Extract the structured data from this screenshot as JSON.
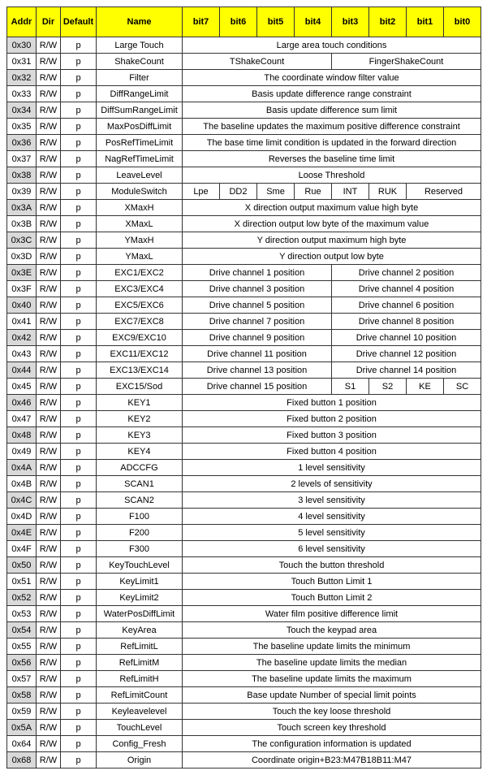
{
  "headers": [
    "Addr",
    "Dir",
    "Default",
    "Name",
    "bit7",
    "bit6",
    "bit5",
    "bit4",
    "bit3",
    "bit2",
    "bit1",
    "bit0"
  ],
  "rows": [
    {
      "addr": "0x30",
      "dir": "R/W",
      "def": "p",
      "name": "Large Touch",
      "bits": [
        {
          "span": 8,
          "text": "Large area touch conditions"
        }
      ]
    },
    {
      "addr": "0x31",
      "dir": "R/W",
      "def": "p",
      "name": "ShakeCount",
      "bits": [
        {
          "span": 4,
          "text": "TShakeCount"
        },
        {
          "span": 4,
          "text": "FingerShakeCount"
        }
      ]
    },
    {
      "addr": "0x32",
      "dir": "R/W",
      "def": "p",
      "name": "Filter",
      "bits": [
        {
          "span": 8,
          "text": "The coordinate window filter value"
        }
      ]
    },
    {
      "addr": "0x33",
      "dir": "R/W",
      "def": "p",
      "name": "DiffRangeLimit",
      "bits": [
        {
          "span": 8,
          "text": "Basis update difference range constraint"
        }
      ]
    },
    {
      "addr": "0x34",
      "dir": "R/W",
      "def": "p",
      "name": "DiffSumRangeLimit",
      "bits": [
        {
          "span": 8,
          "text": "Basis update difference sum limit"
        }
      ]
    },
    {
      "addr": "0x35",
      "dir": "R/W",
      "def": "p",
      "name": "MaxPosDiffLimit",
      "bits": [
        {
          "span": 8,
          "text": "The baseline updates the maximum positive difference constraint"
        }
      ]
    },
    {
      "addr": "0x36",
      "dir": "R/W",
      "def": "p",
      "name": "PosRefTimeLimit",
      "bits": [
        {
          "span": 8,
          "text": "The base time limit condition is updated in the forward direction"
        }
      ]
    },
    {
      "addr": "0x37",
      "dir": "R/W",
      "def": "p",
      "name": "NagRefTimeLimit",
      "bits": [
        {
          "span": 8,
          "text": "Reverses the baseline time limit"
        }
      ]
    },
    {
      "addr": "0x38",
      "dir": "R/W",
      "def": "p",
      "name": "LeaveLevel",
      "bits": [
        {
          "span": 8,
          "text": "Loose Threshold"
        }
      ]
    },
    {
      "addr": "0x39",
      "dir": "R/W",
      "def": "p",
      "name": "ModuleSwitch",
      "bits": [
        {
          "span": 1,
          "text": "Lpe"
        },
        {
          "span": 1,
          "text": "DD2"
        },
        {
          "span": 1,
          "text": "Sme"
        },
        {
          "span": 1,
          "text": "Rue"
        },
        {
          "span": 1,
          "text": "INT"
        },
        {
          "span": 1,
          "text": "RUK"
        },
        {
          "span": 2,
          "text": "Reserved"
        }
      ]
    },
    {
      "addr": "0x3A",
      "dir": "R/W",
      "def": "p",
      "name": "XMaxH",
      "bits": [
        {
          "span": 8,
          "text": "X direction output maximum value high byte"
        }
      ]
    },
    {
      "addr": "0x3B",
      "dir": "R/W",
      "def": "p",
      "name": "XMaxL",
      "bits": [
        {
          "span": 8,
          "text": "X direction output low byte of the maximum value"
        }
      ]
    },
    {
      "addr": "0x3C",
      "dir": "R/W",
      "def": "p",
      "name": "YMaxH",
      "bits": [
        {
          "span": 8,
          "text": "Y direction output maximum high byte"
        }
      ]
    },
    {
      "addr": "0x3D",
      "dir": "R/W",
      "def": "p",
      "name": "YMaxL",
      "bits": [
        {
          "span": 8,
          "text": "Y direction output low byte"
        }
      ]
    },
    {
      "addr": "0x3E",
      "dir": "R/W",
      "def": "p",
      "name": "EXC1/EXC2",
      "bits": [
        {
          "span": 4,
          "text": "Drive channel 1 position"
        },
        {
          "span": 4,
          "text": "Drive channel 2 position"
        }
      ]
    },
    {
      "addr": "0x3F",
      "dir": "R/W",
      "def": "p",
      "name": "EXC3/EXC4",
      "bits": [
        {
          "span": 4,
          "text": "Drive channel 3 position"
        },
        {
          "span": 4,
          "text": "Drive channel 4 position"
        }
      ]
    },
    {
      "addr": "0x40",
      "dir": "R/W",
      "def": "p",
      "name": "EXC5/EXC6",
      "bits": [
        {
          "span": 4,
          "text": "Drive channel 5 position"
        },
        {
          "span": 4,
          "text": "Drive channel 6 position"
        }
      ]
    },
    {
      "addr": "0x41",
      "dir": "R/W",
      "def": "p",
      "name": "EXC7/EXC8",
      "bits": [
        {
          "span": 4,
          "text": "Drive channel 7 position"
        },
        {
          "span": 4,
          "text": "Drive channel 8 position"
        }
      ]
    },
    {
      "addr": "0x42",
      "dir": "R/W",
      "def": "p",
      "name": "EXC9/EXC10",
      "bits": [
        {
          "span": 4,
          "text": "Drive channel 9 position"
        },
        {
          "span": 4,
          "text": "Drive channel 10 position"
        }
      ]
    },
    {
      "addr": "0x43",
      "dir": "R/W",
      "def": "p",
      "name": "EXC11/EXC12",
      "bits": [
        {
          "span": 4,
          "text": "Drive channel 11 position"
        },
        {
          "span": 4,
          "text": "Drive channel 12 position"
        }
      ]
    },
    {
      "addr": "0x44",
      "dir": "R/W",
      "def": "p",
      "name": "EXC13/EXC14",
      "bits": [
        {
          "span": 4,
          "text": "Drive channel 13 position"
        },
        {
          "span": 4,
          "text": "Drive channel 14 position"
        }
      ]
    },
    {
      "addr": "0x45",
      "dir": "R/W",
      "def": "p",
      "name": "EXC15/Sod",
      "bits": [
        {
          "span": 4,
          "text": "Drive channel 15 position"
        },
        {
          "span": 1,
          "text": "S1"
        },
        {
          "span": 1,
          "text": "S2"
        },
        {
          "span": 1,
          "text": "KE"
        },
        {
          "span": 1,
          "text": "SC"
        }
      ]
    },
    {
      "addr": "0x46",
      "dir": "R/W",
      "def": "p",
      "name": "KEY1",
      "bits": [
        {
          "span": 8,
          "text": "Fixed button 1 position"
        }
      ]
    },
    {
      "addr": "0x47",
      "dir": "R/W",
      "def": "p",
      "name": "KEY2",
      "bits": [
        {
          "span": 8,
          "text": "Fixed button 2 position"
        }
      ]
    },
    {
      "addr": "0x48",
      "dir": "R/W",
      "def": "p",
      "name": "KEY3",
      "bits": [
        {
          "span": 8,
          "text": "Fixed button 3 position"
        }
      ]
    },
    {
      "addr": "0x49",
      "dir": "R/W",
      "def": "p",
      "name": "KEY4",
      "bits": [
        {
          "span": 8,
          "text": "Fixed button 4 position"
        }
      ]
    },
    {
      "addr": "0x4A",
      "dir": "R/W",
      "def": "p",
      "name": "ADCCFG",
      "bits": [
        {
          "span": 8,
          "text": "1 level sensitivity"
        }
      ]
    },
    {
      "addr": "0x4B",
      "dir": "R/W",
      "def": "p",
      "name": "SCAN1",
      "bits": [
        {
          "span": 8,
          "text": "2 levels of sensitivity"
        }
      ]
    },
    {
      "addr": "0x4C",
      "dir": "R/W",
      "def": "p",
      "name": "SCAN2",
      "bits": [
        {
          "span": 8,
          "text": "3 level sensitivity"
        }
      ]
    },
    {
      "addr": "0x4D",
      "dir": "R/W",
      "def": "p",
      "name": "F100",
      "bits": [
        {
          "span": 8,
          "text": "4 level sensitivity"
        }
      ]
    },
    {
      "addr": "0x4E",
      "dir": "R/W",
      "def": "p",
      "name": "F200",
      "bits": [
        {
          "span": 8,
          "text": "5 level sensitivity"
        }
      ]
    },
    {
      "addr": "0x4F",
      "dir": "R/W",
      "def": "p",
      "name": "F300",
      "bits": [
        {
          "span": 8,
          "text": "6 level sensitivity"
        }
      ]
    },
    {
      "addr": "0x50",
      "dir": "R/W",
      "def": "p",
      "name": "KeyTouchLevel",
      "bits": [
        {
          "span": 8,
          "text": "Touch the button threshold"
        }
      ]
    },
    {
      "addr": "0x51",
      "dir": "R/W",
      "def": "p",
      "name": "KeyLimit1",
      "bits": [
        {
          "span": 8,
          "text": "Touch Button Limit 1"
        }
      ]
    },
    {
      "addr": "0x52",
      "dir": "R/W",
      "def": "p",
      "name": "KeyLimit2",
      "bits": [
        {
          "span": 8,
          "text": "Touch Button Limit 2"
        }
      ]
    },
    {
      "addr": "0x53",
      "dir": "R/W",
      "def": "p",
      "name": "WaterPosDiffLimit",
      "bits": [
        {
          "span": 8,
          "text": "Water film positive difference limit"
        }
      ]
    },
    {
      "addr": "0x54",
      "dir": "R/W",
      "def": "p",
      "name": "KeyArea",
      "bits": [
        {
          "span": 8,
          "text": "Touch the keypad area"
        }
      ]
    },
    {
      "addr": "0x55",
      "dir": "R/W",
      "def": "p",
      "name": "RefLimitL",
      "bits": [
        {
          "span": 8,
          "text": "The baseline update limits the minimum"
        }
      ]
    },
    {
      "addr": "0x56",
      "dir": "R/W",
      "def": "p",
      "name": "RefLimitM",
      "bits": [
        {
          "span": 8,
          "text": "The baseline update limits the median"
        }
      ]
    },
    {
      "addr": "0x57",
      "dir": "R/W",
      "def": "p",
      "name": "RefLimitH",
      "bits": [
        {
          "span": 8,
          "text": "The baseline update limits the maximum"
        }
      ]
    },
    {
      "addr": "0x58",
      "dir": "R/W",
      "def": "p",
      "name": "RefLimitCount",
      "bits": [
        {
          "span": 8,
          "text": "Base update Number of special limit points"
        }
      ]
    },
    {
      "addr": "0x59",
      "dir": "R/W",
      "def": "p",
      "name": "Keyleavelevel",
      "bits": [
        {
          "span": 8,
          "text": "Touch the key loose threshold"
        }
      ]
    },
    {
      "addr": "0x5A",
      "dir": "R/W",
      "def": "p",
      "name": "TouchLevel",
      "bits": [
        {
          "span": 8,
          "text": "Touch screen key threshold"
        }
      ]
    },
    {
      "addr": "0x64",
      "dir": "R/W",
      "def": "p",
      "name": "Config_Fresh",
      "bits": [
        {
          "span": 8,
          "text": "The configuration information is updated"
        }
      ]
    },
    {
      "addr": "0x68",
      "dir": "R/W",
      "def": "p",
      "name": "Origin",
      "bits": [
        {
          "span": 8,
          "text": "Coordinate origin+B23:M47B18B11:M47"
        }
      ]
    }
  ]
}
